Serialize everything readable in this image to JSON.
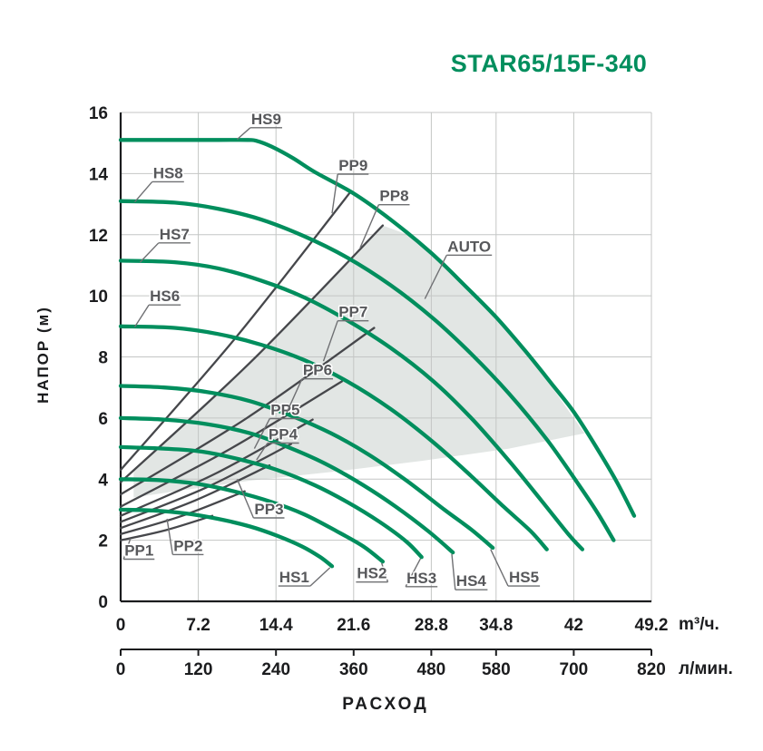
{
  "title": "STAR65/15F-340",
  "colors": {
    "green": "#008E5D",
    "dark": "#46474B",
    "grid": "#C4C6C5",
    "axis": "#1B1C1E",
    "shade": "#E2E6E4",
    "label": "#57585B",
    "leader": "#6F7073"
  },
  "chart_data": {
    "type": "line",
    "title": "STAR65/15F-340",
    "xlabel": "РАСХОД",
    "ylabel": "НАПОР (м)",
    "x_units": [
      "m³/ч.",
      "л/мин."
    ],
    "ylim": [
      0,
      16
    ],
    "xlim_m3h": [
      0,
      49.2
    ],
    "y_ticks": [
      0,
      2,
      4,
      6,
      8,
      10,
      12,
      14,
      16
    ],
    "x_ticks_m3h": [
      0,
      7.2,
      14.4,
      21.6,
      28.8,
      34.8,
      42,
      49.2
    ],
    "x_ticks_lmin": [
      0,
      120,
      240,
      360,
      480,
      580,
      700,
      820
    ],
    "grid": true,
    "hs_series": [
      {
        "name": "HS1",
        "points": [
          [
            0,
            3.0
          ],
          [
            3,
            2.97
          ],
          [
            6,
            2.88
          ],
          [
            9,
            2.7
          ],
          [
            12,
            2.45
          ],
          [
            14.5,
            2.15
          ],
          [
            16.8,
            1.8
          ],
          [
            18.5,
            1.45
          ],
          [
            19.6,
            1.15
          ]
        ]
      },
      {
        "name": "HS2",
        "points": [
          [
            0,
            4.0
          ],
          [
            3.5,
            3.97
          ],
          [
            7,
            3.85
          ],
          [
            10.5,
            3.6
          ],
          [
            14,
            3.25
          ],
          [
            17,
            2.85
          ],
          [
            20,
            2.3
          ],
          [
            22.5,
            1.8
          ],
          [
            24.3,
            1.3
          ]
        ]
      },
      {
        "name": "HS3",
        "points": [
          [
            0,
            5.05
          ],
          [
            4,
            5.0
          ],
          [
            7.5,
            4.9
          ],
          [
            11,
            4.65
          ],
          [
            14.5,
            4.3
          ],
          [
            18,
            3.8
          ],
          [
            21,
            3.25
          ],
          [
            24,
            2.6
          ],
          [
            26.5,
            1.95
          ],
          [
            27.9,
            1.45
          ]
        ]
      },
      {
        "name": "HS4",
        "points": [
          [
            0,
            6.0
          ],
          [
            4,
            5.95
          ],
          [
            8,
            5.8
          ],
          [
            12,
            5.5
          ],
          [
            15.5,
            5.05
          ],
          [
            19,
            4.5
          ],
          [
            22.5,
            3.8
          ],
          [
            25.5,
            3.1
          ],
          [
            28.5,
            2.3
          ],
          [
            30.8,
            1.6
          ]
        ]
      },
      {
        "name": "HS5",
        "points": [
          [
            0,
            7.05
          ],
          [
            4,
            7.0
          ],
          [
            8,
            6.85
          ],
          [
            12,
            6.55
          ],
          [
            16,
            6.05
          ],
          [
            19.5,
            5.5
          ],
          [
            23,
            4.8
          ],
          [
            26.5,
            3.95
          ],
          [
            30,
            3.0
          ],
          [
            32.5,
            2.35
          ],
          [
            34.5,
            1.75
          ]
        ]
      },
      {
        "name": "HS6",
        "points": [
          [
            0,
            9.0
          ],
          [
            5,
            8.95
          ],
          [
            9,
            8.75
          ],
          [
            13,
            8.4
          ],
          [
            17,
            7.9
          ],
          [
            21,
            7.2
          ],
          [
            25,
            6.3
          ],
          [
            29,
            5.2
          ],
          [
            32.5,
            4.1
          ],
          [
            35.5,
            3.1
          ],
          [
            38,
            2.3
          ],
          [
            39.5,
            1.7
          ]
        ]
      },
      {
        "name": "HS7",
        "points": [
          [
            0,
            11.15
          ],
          [
            5,
            11.1
          ],
          [
            9,
            10.9
          ],
          [
            13,
            10.5
          ],
          [
            17,
            9.95
          ],
          [
            21,
            9.2
          ],
          [
            25,
            8.3
          ],
          [
            29,
            7.2
          ],
          [
            32.5,
            6.0
          ],
          [
            36,
            4.6
          ],
          [
            39,
            3.3
          ],
          [
            41.5,
            2.2
          ],
          [
            42.8,
            1.7
          ]
        ]
      },
      {
        "name": "HS8",
        "points": [
          [
            0,
            13.1
          ],
          [
            5,
            13.05
          ],
          [
            9,
            12.85
          ],
          [
            13,
            12.5
          ],
          [
            17,
            11.95
          ],
          [
            21,
            11.25
          ],
          [
            25,
            10.35
          ],
          [
            29,
            9.25
          ],
          [
            32.5,
            8.1
          ],
          [
            36,
            6.8
          ],
          [
            39.5,
            5.3
          ],
          [
            42.5,
            3.8
          ],
          [
            44.2,
            2.9
          ],
          [
            45.7,
            2.0
          ]
        ]
      },
      {
        "name": "HS9",
        "points": [
          [
            0,
            15.1
          ],
          [
            5,
            15.1
          ],
          [
            9,
            15.1
          ],
          [
            11.8,
            15.1
          ],
          [
            12.6,
            15.07
          ],
          [
            14,
            14.88
          ],
          [
            16,
            14.5
          ],
          [
            18,
            14.05
          ],
          [
            21.6,
            13.35
          ],
          [
            25,
            12.5
          ],
          [
            28.8,
            11.4
          ],
          [
            32,
            10.3
          ],
          [
            34.8,
            9.3
          ],
          [
            37.5,
            8.2
          ],
          [
            40,
            7.1
          ],
          [
            42,
            6.2
          ],
          [
            44,
            5.1
          ],
          [
            46,
            3.9
          ],
          [
            47.6,
            2.8
          ]
        ]
      }
    ],
    "pp_series": [
      {
        "name": "PP1",
        "points": [
          [
            0,
            2.0
          ],
          [
            4.2,
            2.33
          ],
          [
            8.5,
            2.8
          ]
        ]
      },
      {
        "name": "PP2",
        "points": [
          [
            0,
            2.2
          ],
          [
            5.7,
            2.8
          ],
          [
            11.5,
            3.6
          ]
        ]
      },
      {
        "name": "PP3",
        "points": [
          [
            0,
            2.4
          ],
          [
            6.9,
            3.3
          ],
          [
            13.8,
            4.45
          ]
        ]
      },
      {
        "name": "PP4",
        "points": [
          [
            0,
            2.6
          ],
          [
            7.9,
            3.72
          ],
          [
            15.8,
            5.15
          ]
        ]
      },
      {
        "name": "PP5",
        "points": [
          [
            0,
            2.8
          ],
          [
            8.9,
            4.2
          ],
          [
            17.8,
            5.95
          ]
        ]
      },
      {
        "name": "PP6",
        "points": [
          [
            0,
            3.1
          ],
          [
            10.2,
            5.0
          ],
          [
            20.5,
            7.2
          ]
        ]
      },
      {
        "name": "PP7",
        "points": [
          [
            0,
            3.5
          ],
          [
            11.7,
            6.0
          ],
          [
            23.5,
            8.95
          ]
        ]
      },
      {
        "name": "PP8",
        "points": [
          [
            0,
            3.9
          ],
          [
            12.1,
            7.85
          ],
          [
            24.3,
            12.3
          ]
        ]
      },
      {
        "name": "PP9",
        "points": [
          [
            0,
            4.3
          ],
          [
            10.6,
            8.6
          ],
          [
            21.3,
            13.4
          ]
        ]
      }
    ],
    "auto_region": {
      "points": [
        [
          1.2,
          4.3
        ],
        [
          6,
          5.85
        ],
        [
          12.1,
          7.85
        ],
        [
          18,
          9.95
        ],
        [
          24.3,
          12.3
        ],
        [
          27,
          11.95
        ],
        [
          30,
          10.97
        ],
        [
          33,
          10.0
        ],
        [
          36,
          8.85
        ],
        [
          39,
          7.5
        ],
        [
          41,
          6.5
        ],
        [
          43,
          5.5
        ],
        [
          36,
          5.0
        ],
        [
          28,
          4.6
        ],
        [
          20,
          4.25
        ],
        [
          12,
          3.95
        ],
        [
          5,
          3.6
        ],
        [
          1.2,
          3.4
        ]
      ]
    },
    "curve_labels": [
      {
        "text": "HS9",
        "x": 12.1,
        "y": 15.62,
        "target": [
          10.8,
          15.12
        ]
      },
      {
        "text": "HS8",
        "x": 3.0,
        "y": 13.85,
        "target": [
          1.3,
          13.07
        ]
      },
      {
        "text": "HS7",
        "x": 3.6,
        "y": 11.85,
        "target": [
          1.8,
          11.1
        ]
      },
      {
        "text": "HS6",
        "x": 2.7,
        "y": 9.82,
        "target": [
          1.3,
          8.98
        ]
      },
      {
        "text": "HS5",
        "x": 36.0,
        "y": 0.62,
        "target": [
          34.3,
          1.7
        ]
      },
      {
        "text": "HS4",
        "x": 31.1,
        "y": 0.5,
        "target": [
          30.7,
          1.55
        ]
      },
      {
        "text": "HS3",
        "x": 26.5,
        "y": 0.6,
        "target": [
          27.8,
          1.4
        ]
      },
      {
        "text": "HS2",
        "x": 21.9,
        "y": 0.75,
        "target": [
          24.2,
          1.25
        ]
      },
      {
        "text": "HS1",
        "x": 14.7,
        "y": 0.62,
        "target": [
          19.4,
          1.1
        ]
      },
      {
        "text": "PP1",
        "x": 0.35,
        "y": 1.5,
        "target": [
          0.9,
          2.05
        ]
      },
      {
        "text": "PP2",
        "x": 4.9,
        "y": 1.65,
        "target": [
          4.3,
          2.7
        ]
      },
      {
        "text": "PP3",
        "x": 12.4,
        "y": 2.85,
        "target": [
          10.8,
          4.0
        ]
      },
      {
        "text": "PP4",
        "x": 13.7,
        "y": 5.3,
        "target": [
          12.6,
          4.63
        ]
      },
      {
        "text": "PP5",
        "x": 13.9,
        "y": 6.1,
        "target": [
          12.4,
          5.0
        ]
      },
      {
        "text": "PP6",
        "x": 16.9,
        "y": 7.4,
        "target": [
          15.4,
          6.18
        ]
      },
      {
        "text": "PP7",
        "x": 20.2,
        "y": 9.3,
        "target": [
          18.8,
          7.86
        ]
      },
      {
        "text": "PP8",
        "x": 24.0,
        "y": 13.1,
        "target": [
          22.2,
          11.57
        ]
      },
      {
        "text": "PP9",
        "x": 20.2,
        "y": 14.1,
        "target": [
          19.6,
          12.7
        ]
      },
      {
        "text": "AUTO",
        "x": 30.3,
        "y": 11.45,
        "target": [
          28.2,
          9.9
        ]
      }
    ]
  }
}
